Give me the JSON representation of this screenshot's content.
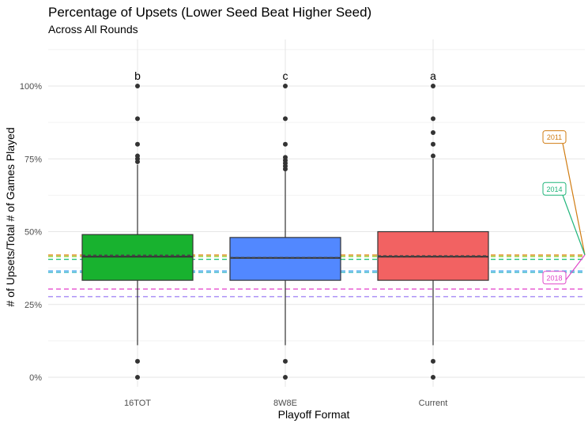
{
  "chart_data": {
    "type": "box",
    "title": "Percentage of Upsets (Lower Seed Beat Higher Seed)",
    "subtitle": "Across All Rounds",
    "xlabel": "Playoff Format",
    "ylabel": "# of Upsets/Total # of Games Played",
    "y_tick_labels": [
      "0%",
      "25%",
      "50%",
      "75%",
      "100%"
    ],
    "y_ticks": [
      0,
      0.25,
      0.5,
      0.75,
      1.0
    ],
    "ylim": [
      -0.02,
      1.15
    ],
    "grid": true,
    "categories": [
      "16TOT",
      "8W8E",
      "Current"
    ],
    "boxes": [
      {
        "category": "16TOT",
        "color": "#18b22f",
        "letter": "b",
        "q1": 0.333,
        "median": 0.414,
        "q3": 0.49,
        "mean": 0.418,
        "whisker_low": 0.11,
        "whisker_high": 0.73,
        "outliers": [
          0.0,
          0.055,
          0.74,
          0.75,
          0.76,
          0.8,
          0.888,
          1.0
        ]
      },
      {
        "category": "8W8E",
        "color": "#5288ff",
        "letter": "c",
        "q1": 0.333,
        "median": 0.41,
        "q3": 0.48,
        "mean": 0.41,
        "whisker_low": 0.11,
        "whisker_high": 0.71,
        "outliers": [
          0.0,
          0.055,
          0.715,
          0.725,
          0.735,
          0.745,
          0.755,
          0.8,
          0.888,
          1.0
        ]
      },
      {
        "category": "Current",
        "color": "#f26262",
        "letter": "a",
        "q1": 0.333,
        "median": 0.414,
        "q3": 0.5,
        "mean": 0.416,
        "whisker_low": 0.11,
        "whisker_high": 0.75,
        "outliers": [
          0.0,
          0.055,
          0.76,
          0.8,
          0.84,
          0.888,
          1.0
        ]
      }
    ],
    "reference_lines": [
      {
        "value": 0.42,
        "color": "#e08a1e"
      },
      {
        "value": 0.415,
        "color": "#9acd32"
      },
      {
        "value": 0.405,
        "color": "#22c07a"
      },
      {
        "value": 0.365,
        "color": "#4aa8f0"
      },
      {
        "value": 0.36,
        "color": "#3cb8c8"
      },
      {
        "value": 0.303,
        "color": "#e64fcf"
      },
      {
        "value": 0.277,
        "color": "#a58af5"
      }
    ],
    "year_labels": [
      {
        "label": "2011",
        "color": "#d07c12",
        "value": 0.825
      },
      {
        "label": "2014",
        "color": "#1fb57a",
        "value": 0.647
      },
      {
        "label": "2018",
        "color": "#e046c8",
        "value": 0.342
      }
    ],
    "year_label_target": 0.42
  }
}
